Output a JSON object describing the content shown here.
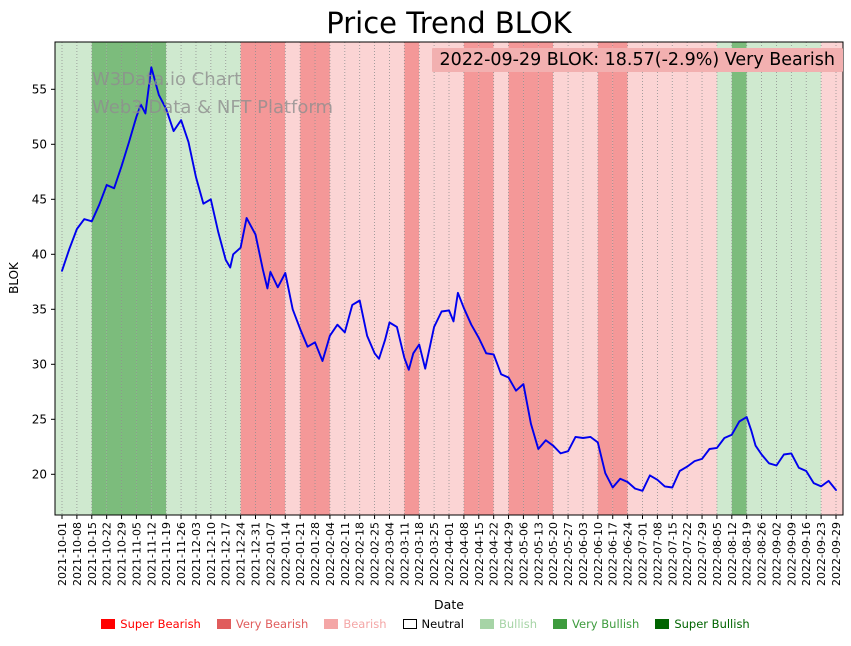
{
  "header": {
    "title": "Price Trend BLOK"
  },
  "watermark": {
    "line1": "W3Data.io Chart",
    "line2": "Web3 Data & NFT Platform"
  },
  "annotation": {
    "text": "2022-09-29 BLOK: 18.57(-2.9%) Very Bearish",
    "bg": "#f2b0b0"
  },
  "chart_data": {
    "type": "line",
    "title": "Price Trend BLOK",
    "xlabel": "Date",
    "ylabel": "BLOK",
    "ylim": [
      16.3,
      59.3
    ],
    "yticks": [
      20,
      25,
      30,
      35,
      40,
      45,
      50,
      55
    ],
    "grid": "vertical-dotted",
    "line_color": "#0000ee",
    "x_tick_labels": [
      "2021-10-01",
      "2021-10-08",
      "2021-10-15",
      "2021-10-22",
      "2021-10-29",
      "2021-11-05",
      "2021-11-12",
      "2021-11-19",
      "2021-11-26",
      "2021-12-03",
      "2021-12-10",
      "2021-12-17",
      "2021-12-24",
      "2021-12-31",
      "2022-01-07",
      "2022-01-14",
      "2022-01-21",
      "2022-01-28",
      "2022-02-04",
      "2022-02-11",
      "2022-02-18",
      "2022-02-25",
      "2022-03-04",
      "2022-03-11",
      "2022-03-18",
      "2022-03-25",
      "2022-04-01",
      "2022-04-08",
      "2022-04-15",
      "2022-04-22",
      "2022-04-29",
      "2022-05-06",
      "2022-05-13",
      "2022-05-20",
      "2022-05-27",
      "2022-06-03",
      "2022-06-10",
      "2022-06-17",
      "2022-06-24",
      "2022-07-01",
      "2022-07-08",
      "2022-07-15",
      "2022-07-22",
      "2022-07-29",
      "2022-08-05",
      "2022-08-12",
      "2022-08-19",
      "2022-08-26",
      "2022-09-02",
      "2022-09-09",
      "2022-09-16",
      "2022-09-23",
      "2022-09-29"
    ],
    "series": [
      {
        "name": "BLOK",
        "points": [
          [
            0,
            38.5
          ],
          [
            0.5,
            40.5
          ],
          [
            1,
            42.3
          ],
          [
            1.5,
            43.2
          ],
          [
            2,
            43.0
          ],
          [
            2.5,
            44.5
          ],
          [
            3,
            46.3
          ],
          [
            3.5,
            46.0
          ],
          [
            4,
            48.0
          ],
          [
            4.5,
            50.2
          ],
          [
            5,
            52.5
          ],
          [
            5.3,
            53.6
          ],
          [
            5.6,
            52.8
          ],
          [
            6,
            57.0
          ],
          [
            6.5,
            54.5
          ],
          [
            7,
            53.2
          ],
          [
            7.5,
            51.2
          ],
          [
            8,
            52.2
          ],
          [
            8.5,
            50.2
          ],
          [
            9,
            47.0
          ],
          [
            9.5,
            44.6
          ],
          [
            10,
            45.0
          ],
          [
            10.5,
            42.0
          ],
          [
            11,
            39.5
          ],
          [
            11.3,
            38.8
          ],
          [
            11.5,
            40.0
          ],
          [
            12,
            40.6
          ],
          [
            12.4,
            43.3
          ],
          [
            13,
            41.8
          ],
          [
            13.5,
            38.6
          ],
          [
            13.8,
            36.9
          ],
          [
            14,
            38.4
          ],
          [
            14.5,
            37.0
          ],
          [
            15,
            38.3
          ],
          [
            15.5,
            35.0
          ],
          [
            16,
            33.2
          ],
          [
            16.5,
            31.6
          ],
          [
            17,
            32.0
          ],
          [
            17.5,
            30.3
          ],
          [
            18,
            32.6
          ],
          [
            18.5,
            33.6
          ],
          [
            19,
            32.9
          ],
          [
            19.5,
            35.4
          ],
          [
            20,
            35.8
          ],
          [
            20.5,
            32.6
          ],
          [
            21,
            31.0
          ],
          [
            21.3,
            30.5
          ],
          [
            21.7,
            32.2
          ],
          [
            22,
            33.8
          ],
          [
            22.5,
            33.4
          ],
          [
            23,
            30.6
          ],
          [
            23.3,
            29.5
          ],
          [
            23.6,
            31.0
          ],
          [
            24,
            31.8
          ],
          [
            24.4,
            29.6
          ],
          [
            25,
            33.4
          ],
          [
            25.5,
            34.8
          ],
          [
            26,
            34.9
          ],
          [
            26.3,
            33.9
          ],
          [
            26.6,
            36.5
          ],
          [
            27,
            35.1
          ],
          [
            27.5,
            33.6
          ],
          [
            28,
            32.4
          ],
          [
            28.5,
            31.0
          ],
          [
            29,
            30.9
          ],
          [
            29.5,
            29.1
          ],
          [
            30,
            28.8
          ],
          [
            30.5,
            27.6
          ],
          [
            31,
            28.2
          ],
          [
            31.5,
            24.6
          ],
          [
            32,
            22.3
          ],
          [
            32.5,
            23.1
          ],
          [
            33,
            22.6
          ],
          [
            33.5,
            21.9
          ],
          [
            34,
            22.1
          ],
          [
            34.5,
            23.4
          ],
          [
            35,
            23.3
          ],
          [
            35.5,
            23.4
          ],
          [
            36,
            22.9
          ],
          [
            36.5,
            20.1
          ],
          [
            37,
            18.8
          ],
          [
            37.5,
            19.6
          ],
          [
            38,
            19.3
          ],
          [
            38.5,
            18.7
          ],
          [
            39,
            18.5
          ],
          [
            39.5,
            19.9
          ],
          [
            40,
            19.5
          ],
          [
            40.5,
            18.9
          ],
          [
            41,
            18.8
          ],
          [
            41.5,
            20.3
          ],
          [
            42,
            20.7
          ],
          [
            42.5,
            21.2
          ],
          [
            43,
            21.4
          ],
          [
            43.5,
            22.3
          ],
          [
            44,
            22.4
          ],
          [
            44.5,
            23.3
          ],
          [
            45,
            23.6
          ],
          [
            45.5,
            24.8
          ],
          [
            46,
            25.2
          ],
          [
            46.3,
            24.0
          ],
          [
            46.6,
            22.6
          ],
          [
            47,
            21.8
          ],
          [
            47.5,
            21.0
          ],
          [
            48,
            20.8
          ],
          [
            48.5,
            21.8
          ],
          [
            49,
            21.9
          ],
          [
            49.5,
            20.6
          ],
          [
            50,
            20.3
          ],
          [
            50.5,
            19.2
          ],
          [
            51,
            18.9
          ],
          [
            51.5,
            19.4
          ],
          [
            52,
            18.57
          ]
        ]
      }
    ],
    "last_point": {
      "date": "2022-09-29",
      "price": 18.57,
      "change_pct": -2.9,
      "sentiment": "Very Bearish"
    },
    "bands": [
      "bullish",
      "bullish",
      "very_bullish",
      "very_bullish",
      "very_bullish",
      "very_bullish",
      "very_bullish",
      "bullish",
      "bullish",
      "bullish",
      "bullish",
      "bullish",
      "very_bearish",
      "very_bearish",
      "very_bearish",
      "bearish",
      "very_bearish",
      "very_bearish",
      "bearish",
      "bearish",
      "bearish",
      "bearish",
      "bearish",
      "very_bearish",
      "bearish",
      "bearish",
      "bearish",
      "very_bearish",
      "very_bearish",
      "bearish",
      "very_bearish",
      "very_bearish",
      "very_bearish",
      "bearish",
      "bearish",
      "bearish",
      "very_bearish",
      "very_bearish",
      "bearish",
      "bearish",
      "bearish",
      "bearish",
      "bearish",
      "bearish",
      "bullish",
      "very_bullish",
      "bullish",
      "bullish",
      "bullish",
      "bullish",
      "bullish",
      "bearish"
    ],
    "band_colors": {
      "super_bearish": "#fb5a5a",
      "very_bearish": "#f49898",
      "bearish": "#fbd4d4",
      "neutral": "#ffffff",
      "bullish": "#cfe9cf",
      "very_bullish": "#7cbc7c",
      "super_bullish": "#379337"
    },
    "legend_position": "bottom"
  },
  "legend": {
    "items": [
      {
        "label": "Super Bearish",
        "color": "#ff0000"
      },
      {
        "label": "Very Bearish",
        "color": "#e05c5c"
      },
      {
        "label": "Bearish",
        "color": "#f4a6a6"
      },
      {
        "label": "Neutral",
        "color": "#ffffff",
        "text_color": "#000000",
        "border": "#000000"
      },
      {
        "label": "Bullish",
        "color": "#a6d4a6"
      },
      {
        "label": "Very Bullish",
        "color": "#3d9b3d"
      },
      {
        "label": "Super Bullish",
        "color": "#006400"
      }
    ]
  }
}
